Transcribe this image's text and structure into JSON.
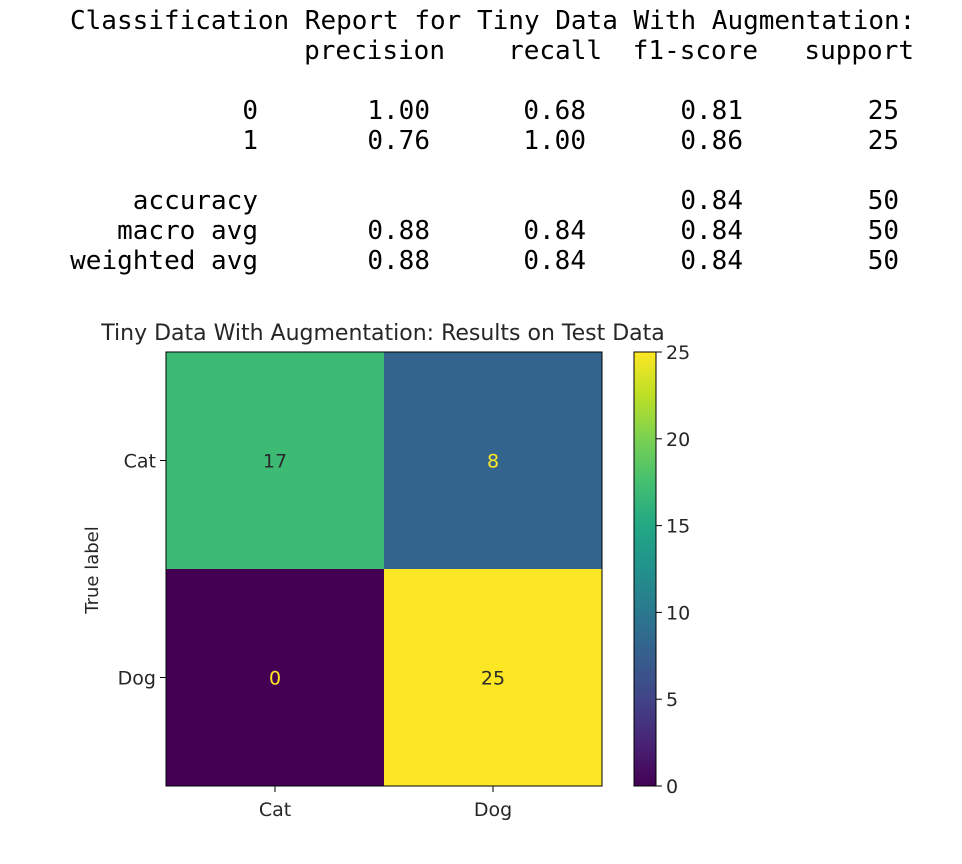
{
  "report": {
    "heading": "Classification Report for Tiny Data With Augmentation:",
    "columns": [
      "precision",
      "recall",
      "f1-score",
      "support"
    ],
    "rows": [
      {
        "label": "0",
        "precision": "1.00",
        "recall": "0.68",
        "f1": "0.81",
        "support": "25"
      },
      {
        "label": "1",
        "precision": "0.76",
        "recall": "1.00",
        "f1": "0.86",
        "support": "25"
      },
      {
        "label": "accuracy",
        "precision": "",
        "recall": "",
        "f1": "0.84",
        "support": "50"
      },
      {
        "label": "macro avg",
        "precision": "0.88",
        "recall": "0.84",
        "f1": "0.84",
        "support": "50"
      },
      {
        "label": "weighted avg",
        "precision": "0.88",
        "recall": "0.84",
        "f1": "0.84",
        "support": "50"
      }
    ]
  },
  "chart_data": {
    "type": "heatmap",
    "title": "Tiny Data With Augmentation: Results on Test Data",
    "ylabel": "True label",
    "xlabel": "",
    "x_categories": [
      "Cat",
      "Dog"
    ],
    "y_categories": [
      "Cat",
      "Dog"
    ],
    "matrix": [
      [
        17,
        8
      ],
      [
        0,
        25
      ]
    ],
    "colormap": "viridis",
    "colorbar": {
      "min": 0,
      "max": 25,
      "ticks": [
        0,
        5,
        10,
        15,
        20,
        25
      ]
    },
    "colors": {
      "low": "#440154",
      "high": "#fde725",
      "dark_text": "#2a2a2a",
      "light_text": "#fde725"
    }
  }
}
